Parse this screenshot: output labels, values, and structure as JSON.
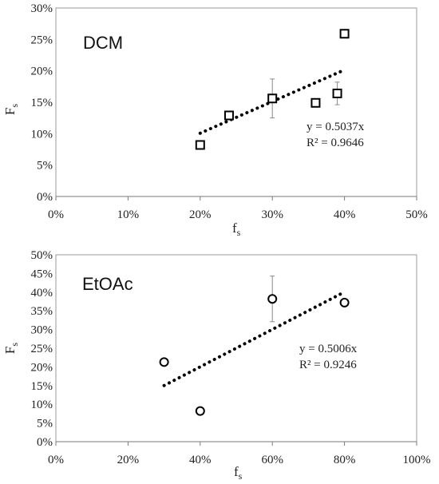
{
  "chart_data": [
    {
      "type": "scatter",
      "title": "DCM",
      "xlabel": "f",
      "xlabel_sub": "s",
      "ylabel": "F",
      "ylabel_sub": "s",
      "xlim": [
        0,
        0.5
      ],
      "ylim": [
        0,
        0.3
      ],
      "x_ticks": [
        "0%",
        "10%",
        "20%",
        "30%",
        "40%",
        "50%"
      ],
      "y_ticks": [
        "0%",
        "5%",
        "10%",
        "15%",
        "20%",
        "25%",
        "30%"
      ],
      "marker": "square",
      "grid": false,
      "series": [
        {
          "points": [
            {
              "x": 0.2,
              "y": 0.082,
              "err": 0
            },
            {
              "x": 0.24,
              "y": 0.129,
              "err": 0
            },
            {
              "x": 0.3,
              "y": 0.156,
              "err": 0.031
            },
            {
              "x": 0.36,
              "y": 0.149,
              "err": 0
            },
            {
              "x": 0.39,
              "y": 0.164,
              "err": 0.018
            },
            {
              "x": 0.4,
              "y": 0.259,
              "err": 0
            }
          ]
        }
      ],
      "trendline": {
        "x": [
          0.2,
          0.4
        ],
        "y": [
          0.1007,
          0.2015
        ],
        "style": "dotted"
      },
      "equation": "y = 0.5037x",
      "r2": "R² = 0.9646"
    },
    {
      "type": "scatter",
      "title": "EtOAc",
      "xlabel": "f",
      "xlabel_sub": "s",
      "ylabel": "F",
      "ylabel_sub": "s",
      "xlim": [
        0,
        1.0
      ],
      "ylim": [
        0,
        0.5
      ],
      "x_ticks": [
        "0%",
        "20%",
        "40%",
        "60%",
        "80%",
        "100%"
      ],
      "y_ticks": [
        "0%",
        "5%",
        "10%",
        "15%",
        "20%",
        "25%",
        "30%",
        "35%",
        "40%",
        "45%",
        "50%"
      ],
      "marker": "circle",
      "grid": false,
      "series": [
        {
          "points": [
            {
              "x": 0.3,
              "y": 0.213,
              "err": 0
            },
            {
              "x": 0.4,
              "y": 0.082,
              "err": 0
            },
            {
              "x": 0.6,
              "y": 0.382,
              "err": 0.061
            },
            {
              "x": 0.8,
              "y": 0.372,
              "err": 0
            }
          ]
        }
      ],
      "trendline": {
        "x": [
          0.3,
          0.8
        ],
        "y": [
          0.1502,
          0.4005
        ],
        "style": "dotted"
      },
      "equation": "y = 0.5006x",
      "r2": "R² = 0.9246"
    }
  ]
}
